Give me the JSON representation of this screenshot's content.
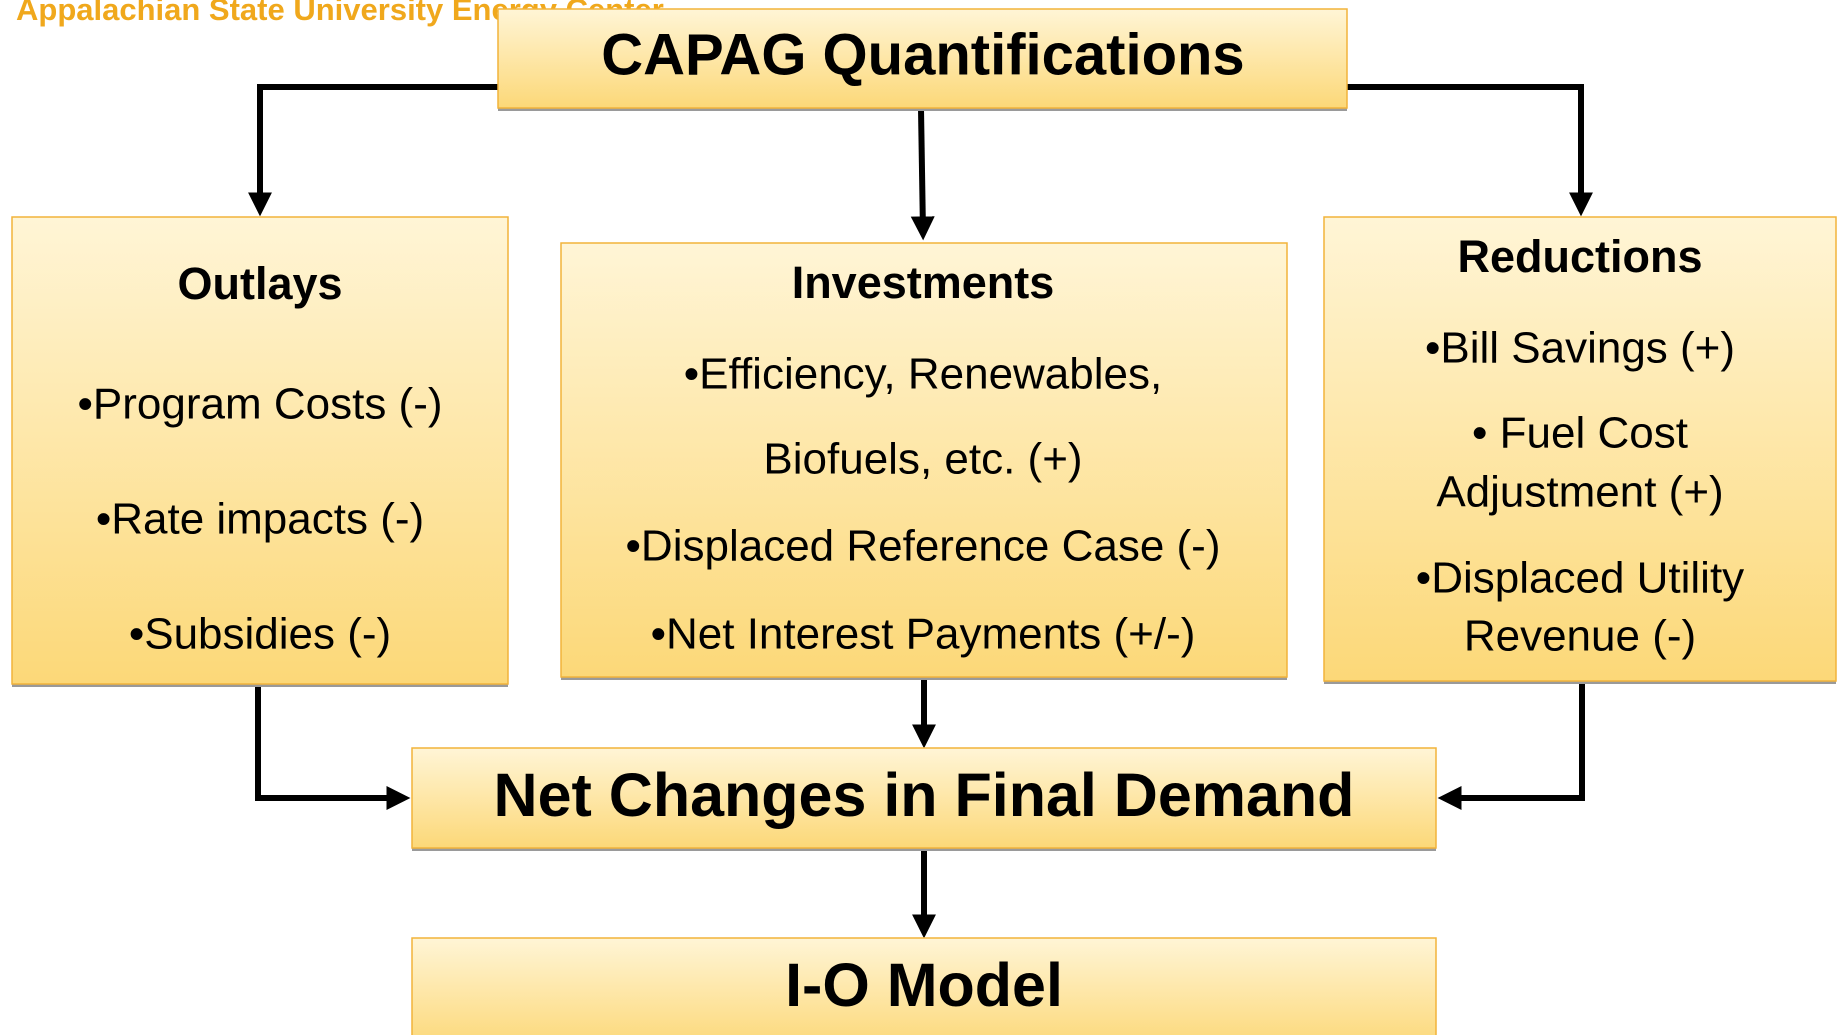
{
  "header": "Appalachian State University Energy Center",
  "title": "CAPAG Quantifications",
  "boxes": [
    {
      "heading": "Outlays",
      "items": [
        "•Program Costs (-)",
        "•Rate impacts (-)",
        "•Subsidies (-)"
      ]
    },
    {
      "heading": "Investments",
      "items": [
        "•Efficiency, Renewables,",
        "Biofuels, etc. (+)",
        "•Displaced Reference Case (-)",
        "•Net Interest Payments (+/-)"
      ]
    },
    {
      "heading": "Reductions",
      "items": [
        "•Bill Savings (+)",
        "• Fuel Cost",
        "Adjustment (+)",
        "•Displaced Utility",
        "Revenue (-)"
      ]
    }
  ],
  "net_changes": "Net Changes in Final Demand",
  "model": "I-O Model"
}
